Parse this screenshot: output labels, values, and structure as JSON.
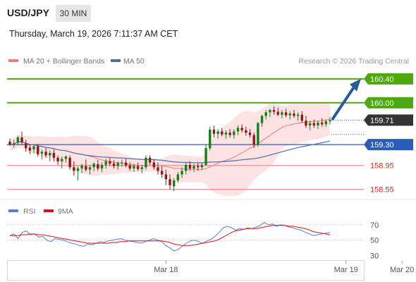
{
  "header": {
    "symbol": "USD/JPY",
    "timeframe": "30 MIN",
    "datetime": "Thursday, March 19, 2026 7:11:37 AM CET"
  },
  "legend": {
    "ma20_label": "MA 20 + Bollinger Bands",
    "ma50_label": "MA 50",
    "copyright": "Research © 2026 Trading Central"
  },
  "colors": {
    "up_candle": "#1e7a1e",
    "down_candle": "#8b1a1a",
    "ma20": "#f07c7c",
    "bollinger_fill": "#fde3e3",
    "ma50": "#4a6fa5",
    "target_level": "#4ea80f",
    "pivot_level": "#2a5cb8",
    "support_level": "#f07c7c",
    "arrow": "#2a5a9a",
    "rsi": "#5b7fd6",
    "rsi_ma": "#dd1111"
  },
  "chart_data": [
    {
      "type": "candlestick",
      "title": "USD/JPY 30 MIN",
      "ylim": [
        158.38,
        160.6
      ],
      "levels": [
        {
          "value": 160.4,
          "label": "160.40",
          "kind": "target",
          "style": "tag"
        },
        {
          "value": 160.0,
          "label": "160.00",
          "kind": "target",
          "style": "tag"
        },
        {
          "value": 159.71,
          "label": "159.71",
          "kind": "last",
          "style": "tag"
        },
        {
          "value": 159.3,
          "label": "159.30",
          "kind": "pivot",
          "style": "tag"
        },
        {
          "value": 158.95,
          "label": "158.95",
          "kind": "support",
          "style": "text"
        },
        {
          "value": 158.55,
          "label": "158.55",
          "kind": "support",
          "style": "text"
        }
      ],
      "x_labels": [
        "Mar 18",
        "Mar 19",
        "Mar 20"
      ],
      "x_label_index": [
        39,
        84,
        98
      ],
      "candles": [
        [
          159.35,
          159.4,
          159.28,
          159.3
        ],
        [
          159.3,
          159.38,
          159.25,
          159.32
        ],
        [
          159.33,
          159.45,
          159.29,
          159.42
        ],
        [
          159.42,
          159.52,
          159.3,
          159.34
        ],
        [
          159.32,
          159.38,
          159.18,
          159.24
        ],
        [
          159.25,
          159.3,
          159.14,
          159.2
        ],
        [
          159.22,
          159.3,
          159.15,
          159.27
        ],
        [
          159.27,
          159.31,
          159.1,
          159.14
        ],
        [
          159.15,
          159.22,
          159.05,
          159.18
        ],
        [
          159.18,
          159.24,
          159.08,
          159.12
        ],
        [
          159.12,
          159.2,
          159.02,
          159.16
        ],
        [
          159.16,
          159.22,
          159.02,
          159.08
        ],
        [
          159.08,
          159.12,
          158.96,
          159.02
        ],
        [
          159.02,
          159.1,
          158.9,
          159.06
        ],
        [
          159.06,
          159.12,
          159.0,
          159.1
        ],
        [
          159.08,
          159.12,
          158.88,
          158.92
        ],
        [
          158.92,
          159.02,
          158.78,
          158.86
        ],
        [
          158.86,
          158.94,
          158.7,
          158.9
        ],
        [
          158.9,
          158.98,
          158.82,
          158.95
        ],
        [
          158.94,
          159.05,
          158.85,
          158.88
        ],
        [
          158.88,
          158.96,
          158.8,
          158.92
        ],
        [
          158.92,
          159.0,
          158.85,
          158.98
        ],
        [
          158.97,
          159.04,
          158.86,
          158.9
        ],
        [
          158.9,
          159.0,
          158.84,
          158.96
        ],
        [
          158.96,
          159.06,
          158.9,
          159.02
        ],
        [
          159.02,
          159.08,
          158.94,
          158.98
        ],
        [
          158.98,
          159.04,
          158.9,
          158.94
        ],
        [
          158.94,
          159.02,
          158.88,
          158.99
        ],
        [
          158.99,
          159.05,
          158.93,
          159.0
        ],
        [
          159.0,
          159.06,
          158.92,
          158.95
        ],
        [
          158.95,
          159.0,
          158.86,
          158.9
        ],
        [
          158.9,
          158.98,
          158.84,
          158.94
        ],
        [
          158.94,
          159.0,
          158.86,
          158.89
        ],
        [
          158.89,
          158.96,
          158.82,
          158.92
        ],
        [
          158.92,
          159.12,
          158.88,
          159.08
        ],
        [
          159.08,
          159.12,
          158.96,
          159.0
        ],
        [
          159.0,
          159.06,
          158.88,
          158.92
        ],
        [
          158.92,
          159.0,
          158.8,
          158.86
        ],
        [
          158.86,
          158.94,
          158.74,
          158.8
        ],
        [
          158.8,
          158.88,
          158.62,
          158.72
        ],
        [
          158.72,
          158.8,
          158.55,
          158.62
        ],
        [
          158.6,
          158.74,
          158.52,
          158.7
        ],
        [
          158.7,
          158.84,
          158.66,
          158.8
        ],
        [
          158.8,
          158.92,
          158.74,
          158.86
        ],
        [
          158.86,
          159.0,
          158.8,
          158.96
        ],
        [
          158.96,
          159.02,
          158.86,
          158.9
        ],
        [
          158.9,
          158.98,
          158.84,
          158.94
        ],
        [
          158.94,
          159.0,
          158.86,
          158.92
        ],
        [
          158.92,
          159.0,
          158.88,
          158.96
        ],
        [
          158.96,
          159.3,
          158.94,
          159.24
        ],
        [
          159.24,
          159.6,
          159.2,
          159.55
        ],
        [
          159.55,
          159.62,
          159.42,
          159.48
        ],
        [
          159.48,
          159.56,
          159.4,
          159.52
        ],
        [
          159.52,
          159.58,
          159.44,
          159.47
        ],
        [
          159.47,
          159.54,
          159.4,
          159.5
        ],
        [
          159.5,
          159.56,
          159.42,
          159.46
        ],
        [
          159.46,
          159.56,
          159.4,
          159.52
        ],
        [
          159.52,
          159.62,
          159.46,
          159.58
        ],
        [
          159.58,
          159.64,
          159.5,
          159.54
        ],
        [
          159.54,
          159.6,
          159.45,
          159.5
        ],
        [
          159.5,
          159.56,
          159.42,
          159.46
        ],
        [
          159.46,
          159.5,
          159.24,
          159.3
        ],
        [
          159.3,
          159.68,
          159.26,
          159.66
        ],
        [
          159.66,
          159.8,
          159.6,
          159.78
        ],
        [
          159.78,
          159.88,
          159.72,
          159.84
        ],
        [
          159.84,
          159.9,
          159.76,
          159.88
        ],
        [
          159.88,
          159.94,
          159.8,
          159.85
        ],
        [
          159.85,
          159.92,
          159.78,
          159.8
        ],
        [
          159.8,
          159.88,
          159.74,
          159.84
        ],
        [
          159.84,
          159.9,
          159.76,
          159.79
        ],
        [
          159.79,
          159.86,
          159.72,
          159.82
        ],
        [
          159.82,
          159.88,
          159.75,
          159.78
        ],
        [
          159.78,
          159.84,
          159.7,
          159.8
        ],
        [
          159.8,
          159.86,
          159.66,
          159.7
        ],
        [
          159.7,
          159.78,
          159.58,
          159.62
        ],
        [
          159.62,
          159.7,
          159.54,
          159.66
        ],
        [
          159.66,
          159.72,
          159.58,
          159.62
        ],
        [
          159.62,
          159.7,
          159.56,
          159.67
        ],
        [
          159.67,
          159.74,
          159.6,
          159.64
        ],
        [
          159.64,
          159.72,
          159.6,
          159.69
        ],
        [
          159.69,
          159.76,
          159.64,
          159.71
        ]
      ]
    },
    {
      "type": "line",
      "ylabel": "RSI",
      "ylim": [
        25,
        78
      ],
      "y_ticks": [
        70,
        50,
        30
      ],
      "series": [
        {
          "name": "RSI",
          "color": "#5b7fd6",
          "values": [
            56,
            58,
            52,
            60,
            62,
            57,
            58,
            54,
            55,
            50,
            48,
            52,
            51,
            50,
            48,
            46,
            45,
            43,
            42,
            45,
            44,
            46,
            48,
            47,
            49,
            50,
            51,
            52,
            50,
            49,
            48,
            47,
            46,
            48,
            50,
            52,
            50,
            48,
            43,
            40,
            36,
            38,
            42,
            46,
            49,
            50,
            48,
            46,
            49,
            51,
            55,
            60,
            66,
            68,
            66,
            63,
            65,
            64,
            66,
            65,
            67,
            69,
            73,
            70,
            71,
            68,
            70,
            69,
            67,
            66,
            64,
            63,
            60,
            58,
            56,
            57,
            58,
            59,
            60
          ]
        },
        {
          "name": "9MA",
          "color": "#dd1111",
          "values": [
            56,
            56,
            56,
            57,
            57,
            58,
            58,
            57,
            57,
            56,
            55,
            54,
            53,
            52,
            51,
            50,
            49,
            48,
            47,
            46,
            46,
            46,
            46,
            46,
            46,
            47,
            47,
            48,
            48,
            49,
            49,
            49,
            49,
            49,
            49,
            49,
            49,
            49,
            48,
            47,
            45,
            44,
            43,
            43,
            43,
            44,
            45,
            46,
            47,
            48,
            49,
            51,
            54,
            57,
            60,
            62,
            63,
            64,
            65,
            65,
            65,
            66,
            67,
            68,
            69,
            69,
            69,
            69,
            68,
            68,
            67,
            66,
            65,
            63,
            61,
            60,
            59,
            58,
            57
          ]
        }
      ]
    }
  ]
}
